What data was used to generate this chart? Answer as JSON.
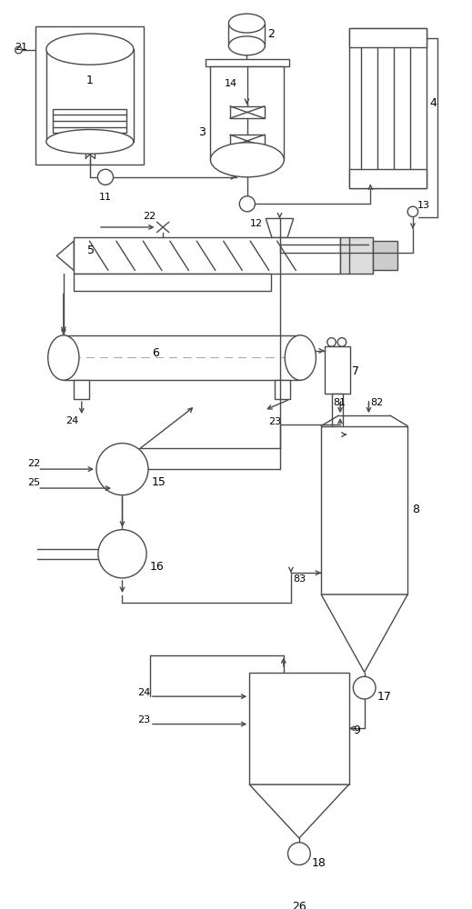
{
  "bg_color": "#ffffff",
  "line_color": "#4a4a4a",
  "lw": 1.0,
  "fig_width": 5.19,
  "fig_height": 10.0,
  "dpi": 100
}
